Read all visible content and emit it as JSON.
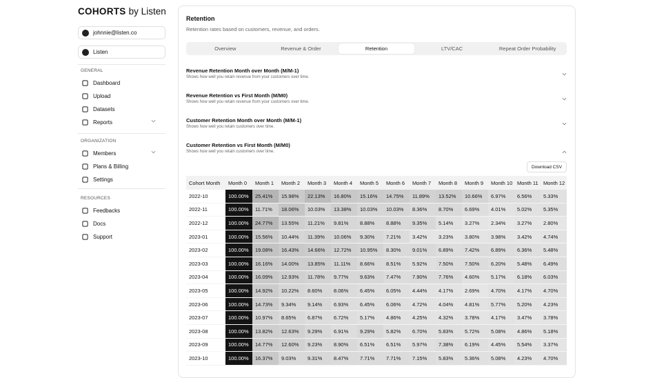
{
  "brand": {
    "name": "COHORTS",
    "suffix": "by Listen"
  },
  "account": {
    "email": "johnnie@listen.co",
    "workspace": "Listen"
  },
  "nav": [
    {
      "heading": "GENERAL",
      "items": [
        "Dashboard",
        "Upload",
        "Datasets",
        "Reports"
      ]
    },
    {
      "heading": "ORGANIZATION",
      "items": [
        "Members",
        "Plans & Billing",
        "Settings"
      ]
    },
    {
      "heading": "RESOURCES",
      "items": [
        "Feedbacks",
        "Docs",
        "Support"
      ]
    }
  ],
  "header": {
    "title": "Retention",
    "subtitle": "Retention rates based on customers, revenue, and orders."
  },
  "tabs": {
    "items": [
      "Overview",
      "Revenue & Order",
      "Retention",
      "LTV/CAC",
      "Repeat Order Probability"
    ],
    "active": 2
  },
  "sections": [
    {
      "title": "Revenue Retention Month over Month (M/M-1)",
      "description": "Shows how well you retain revenue from your customers over time."
    },
    {
      "title": "Revenue Retention vs First Month (M/M0)",
      "description": "Shows how well you retain revenue from your customers over time."
    },
    {
      "title": "Customer Retention Month over Month (M/M-1)",
      "description": "Shows how well you retain customers over time."
    },
    {
      "title": "Customer Retention vs First Month (M/M0)",
      "description": "Shows how well you retain customers over time."
    }
  ],
  "download": "Download CSV",
  "table": {
    "columns": [
      "Cohort Month",
      "Month 0",
      "Month 1",
      "Month 2",
      "Month 3",
      "Month 4",
      "Month 5",
      "Month 6",
      "Month 7",
      "Month 8",
      "Month 9",
      "Month 10",
      "Month 11",
      "Month 12"
    ],
    "rows": [
      [
        "2022-10",
        "100.00%",
        "25.41%",
        "15.98%",
        "22.13%",
        "16.80%",
        "15.16%",
        "14.75%",
        "11.89%",
        "13.52%",
        "10.66%",
        "6.97%",
        "6.56%",
        "5.33%"
      ],
      [
        "2022-11",
        "100.00%",
        "11.71%",
        "18.06%",
        "10.03%",
        "13.38%",
        "10.03%",
        "10.03%",
        "8.36%",
        "8.70%",
        "6.69%",
        "4.01%",
        "5.02%",
        "5.35%"
      ],
      [
        "2022-12",
        "100.00%",
        "24.77%",
        "13.55%",
        "11.21%",
        "9.81%",
        "8.88%",
        "8.88%",
        "9.35%",
        "5.14%",
        "3.27%",
        "2.34%",
        "3.27%",
        "2.80%"
      ],
      [
        "2023-01",
        "100.00%",
        "15.56%",
        "10.44%",
        "11.39%",
        "10.06%",
        "9.30%",
        "7.21%",
        "3.42%",
        "3.23%",
        "3.80%",
        "3.98%",
        "3.42%",
        "4.74%"
      ],
      [
        "2023-02",
        "100.00%",
        "19.08%",
        "16.43%",
        "14.66%",
        "12.72%",
        "10.95%",
        "8.30%",
        "9.01%",
        "6.89%",
        "7.42%",
        "6.89%",
        "6.36%",
        "5.48%"
      ],
      [
        "2023-03",
        "100.00%",
        "16.16%",
        "14.00%",
        "13.85%",
        "11.11%",
        "8.66%",
        "8.51%",
        "5.92%",
        "7.50%",
        "7.50%",
        "6.20%",
        "5.48%",
        "6.49%"
      ],
      [
        "2023-04",
        "100.00%",
        "16.09%",
        "12.93%",
        "11.78%",
        "9.77%",
        "9.63%",
        "7.47%",
        "7.90%",
        "7.76%",
        "4.60%",
        "5.17%",
        "6.18%",
        "6.03%"
      ],
      [
        "2023-05",
        "100.00%",
        "14.92%",
        "10.22%",
        "8.60%",
        "8.06%",
        "6.45%",
        "6.05%",
        "4.44%",
        "4.17%",
        "2.69%",
        "4.70%",
        "4.17%",
        "4.70%"
      ],
      [
        "2023-06",
        "100.00%",
        "14.73%",
        "9.34%",
        "9.14%",
        "6.93%",
        "6.45%",
        "6.06%",
        "4.72%",
        "4.04%",
        "4.81%",
        "5.77%",
        "5.20%",
        "4.23%"
      ],
      [
        "2023-07",
        "100.00%",
        "10.97%",
        "8.65%",
        "6.87%",
        "6.72%",
        "5.17%",
        "4.86%",
        "4.25%",
        "4.32%",
        "3.78%",
        "4.17%",
        "3.47%",
        "3.78%"
      ],
      [
        "2023-08",
        "100.00%",
        "13.82%",
        "12.63%",
        "9.29%",
        "6.91%",
        "9.29%",
        "5.82%",
        "6.70%",
        "5.83%",
        "5.72%",
        "5.08%",
        "4.86%",
        "5.18%"
      ],
      [
        "2023-09",
        "100.00%",
        "14.77%",
        "12.60%",
        "9.23%",
        "8.90%",
        "6.51%",
        "6.51%",
        "5.97%",
        "7.38%",
        "6.19%",
        "4.45%",
        "5.54%",
        "3.37%"
      ],
      [
        "2023-10",
        "100.00%",
        "16.37%",
        "9.03%",
        "9.31%",
        "8.47%",
        "7.71%",
        "7.71%",
        "7.15%",
        "5.83%",
        "5.36%",
        "5.08%",
        "4.23%",
        "4.70%"
      ]
    ]
  }
}
